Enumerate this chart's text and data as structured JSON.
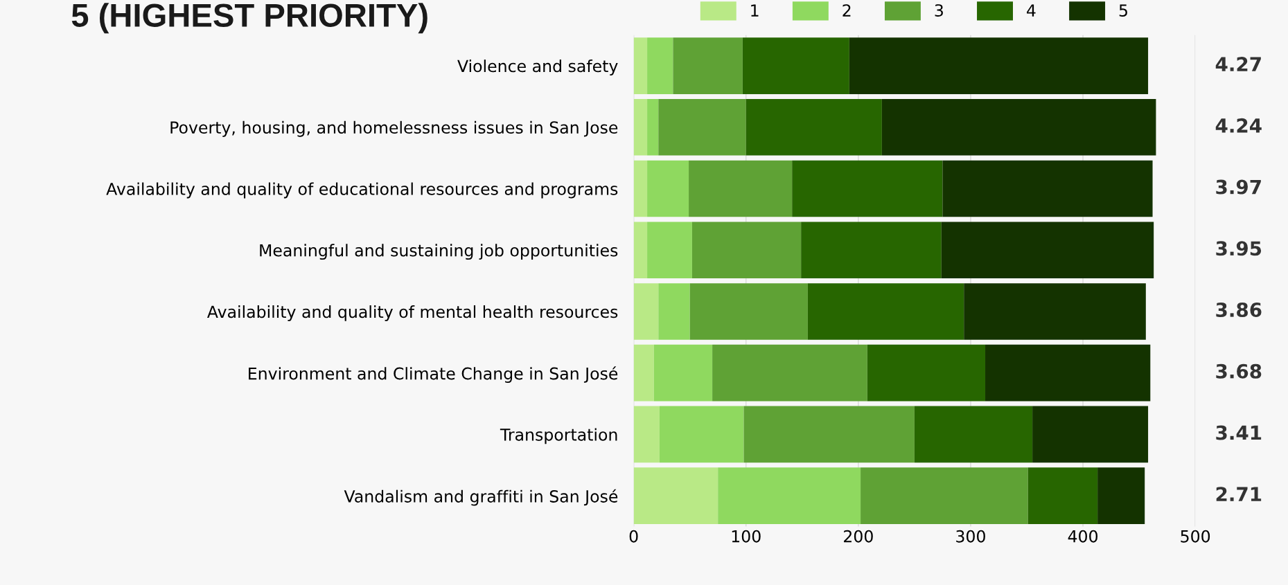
{
  "chart_data": {
    "type": "bar",
    "orientation": "horizontal",
    "stacked": true,
    "title": "5 (HIGHEST PRIORITY)",
    "categories": [
      "Violence and safety",
      "Poverty, housing, and homelessness issues in San Jose",
      "Availability and quality of educational resources and programs",
      "Meaningful and sustaining job opportunities",
      "Availability and quality of mental health resources",
      "Environment and Climate Change in San José",
      "Transportation",
      "Vandalism and graffiti in San José"
    ],
    "series": [
      {
        "name": "1",
        "color": "#b9e986",
        "values": [
          12,
          12,
          12,
          12,
          22,
          18,
          23,
          75
        ]
      },
      {
        "name": "2",
        "color": "#8fd95f",
        "values": [
          23,
          10,
          37,
          40,
          28,
          52,
          75,
          127
        ]
      },
      {
        "name": "3",
        "color": "#5fa235",
        "values": [
          62,
          78,
          92,
          97,
          105,
          138,
          152,
          149
        ]
      },
      {
        "name": "4",
        "color": "#276600",
        "values": [
          95,
          121,
          134,
          125,
          139,
          105,
          105,
          62
        ]
      },
      {
        "name": "5",
        "color": "#143300",
        "values": [
          266,
          244,
          187,
          189,
          162,
          147,
          103,
          42
        ]
      }
    ],
    "annotations": [
      "4.27",
      "4.24",
      "3.97",
      "3.95",
      "3.86",
      "3.68",
      "3.41",
      "2.71"
    ],
    "xlim": [
      0,
      500
    ],
    "xticks": [
      0,
      100,
      200,
      300,
      400,
      500
    ],
    "grid": "x",
    "legend": "top"
  }
}
